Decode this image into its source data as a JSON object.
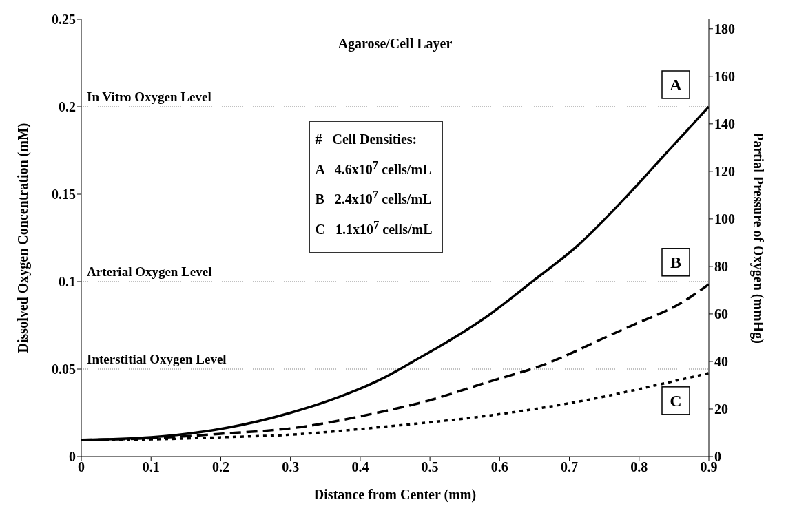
{
  "chart_data": {
    "type": "line",
    "title": "Agarose/Cell Layer",
    "xlabel": "Distance from Center (mm)",
    "ylabel": "Dissolved Oxygen Concentration (mM)",
    "y2label": "Partial Pressure of Oxygen (mmHg)",
    "legend_title": "#   Cell Densities:",
    "annotations": [
      "A   4.6x10$^{7}$ cells/mL",
      "B   2.4x10$^{7}$ cells/mL",
      "C   1.1x10$^{7}$ cells/mL"
    ],
    "xlim": [
      0,
      0.9
    ],
    "xticks": [
      0,
      0.1,
      0.2,
      0.3,
      0.4,
      0.5,
      0.6,
      0.7,
      0.8,
      0.9
    ],
    "ylim": [
      0,
      0.25
    ],
    "yticks": [
      0,
      0.05,
      0.1,
      0.15,
      0.2,
      0.25
    ],
    "y2lim": [
      0,
      184
    ],
    "y2ticks": [
      0,
      20,
      40,
      60,
      80,
      100,
      120,
      140,
      160,
      180
    ],
    "grid": false,
    "ref_lines": [
      {
        "axis": "y",
        "value": 0.2,
        "label": "In Vitro Oxygen Level",
        "color": "#808080",
        "line_style": "dotted"
      },
      {
        "axis": "y",
        "value": 0.1,
        "label": "Arterial Oxygen Level",
        "color": "#808080",
        "line_style": "dotted"
      },
      {
        "axis": "y",
        "value": 0.05,
        "label": "Interstitial Oxygen Level",
        "color": "#808080",
        "line_style": "dotted"
      }
    ],
    "series": [
      {
        "name": "A",
        "color": "#000000",
        "line_style": "solid",
        "x": [
          0,
          0.1,
          0.209,
          0.3,
          0.355,
          0.4365,
          0.4855,
          0.511,
          0.583,
          0.648,
          0.713,
          0.778,
          0.837,
          0.9
        ],
        "values": [
          0.0095,
          0.011,
          0.0164,
          0.025,
          0.0319,
          0.0455,
          0.0565,
          0.0623,
          0.0804,
          0.1004,
          0.121,
          0.147,
          0.1727,
          0.2
        ]
      },
      {
        "name": "B",
        "color": "#000000",
        "line_style": "dashed",
        "x": [
          0,
          0.1,
          0.2,
          0.306,
          0.4365,
          0.4855,
          0.58,
          0.664,
          0.762,
          0.795,
          0.859,
          0.9
        ],
        "values": [
          0.0095,
          0.0105,
          0.013,
          0.0164,
          0.0261,
          0.0306,
          0.0422,
          0.0526,
          0.07,
          0.0758,
          0.0875,
          0.0985
        ]
      },
      {
        "name": "C",
        "color": "#000000",
        "line_style": "dotted",
        "x": [
          0,
          0.1,
          0.2,
          0.3,
          0.4365,
          0.599,
          0.729,
          0.827,
          0.9
        ],
        "values": [
          0.0095,
          0.0098,
          0.011,
          0.0125,
          0.0171,
          0.0242,
          0.0326,
          0.041,
          0.0477
        ]
      }
    ]
  }
}
